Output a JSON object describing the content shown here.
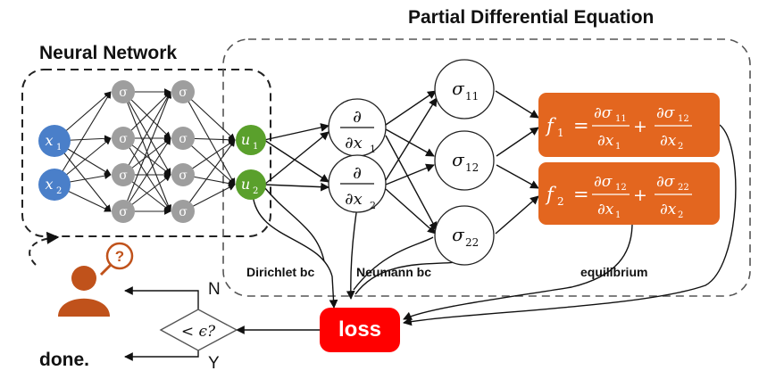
{
  "titles": {
    "neural_network": "Neural Network",
    "pde": "Partial Differential Equation"
  },
  "nodes": {
    "inputs": [
      {
        "var": "x",
        "sub": "1"
      },
      {
        "var": "x",
        "sub": "2"
      }
    ],
    "hidden_symbol": "σ",
    "outputs": [
      {
        "var": "u",
        "sub": "1"
      },
      {
        "var": "u",
        "sub": "2"
      }
    ],
    "derivatives": [
      {
        "num": "∂",
        "den_prefix": "∂x",
        "sub": "1"
      },
      {
        "num": "∂",
        "den_prefix": "∂x",
        "sub": "2"
      }
    ],
    "stresses": [
      {
        "var": "σ",
        "sub": "11"
      },
      {
        "var": "σ",
        "sub": "12"
      },
      {
        "var": "σ",
        "sub": "22"
      }
    ]
  },
  "equations": {
    "f1": {
      "lhs": "f",
      "lhs_sub": "1",
      "t1_num": "∂σ",
      "t1_num_sub": "11",
      "t1_den": "∂x",
      "t1_den_sub": "1",
      "t2_num": "∂σ",
      "t2_num_sub": "12",
      "t2_den": "∂x",
      "t2_den_sub": "2"
    },
    "f2": {
      "lhs": "f",
      "lhs_sub": "2",
      "t1_num": "∂σ",
      "t1_num_sub": "12",
      "t1_den": "∂x",
      "t1_den_sub": "1",
      "t2_num": "∂σ",
      "t2_num_sub": "22",
      "t2_den": "∂x",
      "t2_den_sub": "2"
    },
    "equals": "=",
    "plus": "+"
  },
  "labels": {
    "dirichlet": "Dirichlet bc",
    "neumann": "Neumann bc",
    "equilibrium": "equilibrium",
    "loss": "loss",
    "condition": "< ϵ?",
    "no": "N",
    "yes": "Y",
    "done": "done.",
    "question": "?"
  },
  "colors": {
    "input_node": "#4a7fc9",
    "hidden_node": "#9e9e9e",
    "output_node": "#5aa02c",
    "equation_box": "#e3661f",
    "loss_box": "#ff0000",
    "user_icon": "#c0521b"
  }
}
